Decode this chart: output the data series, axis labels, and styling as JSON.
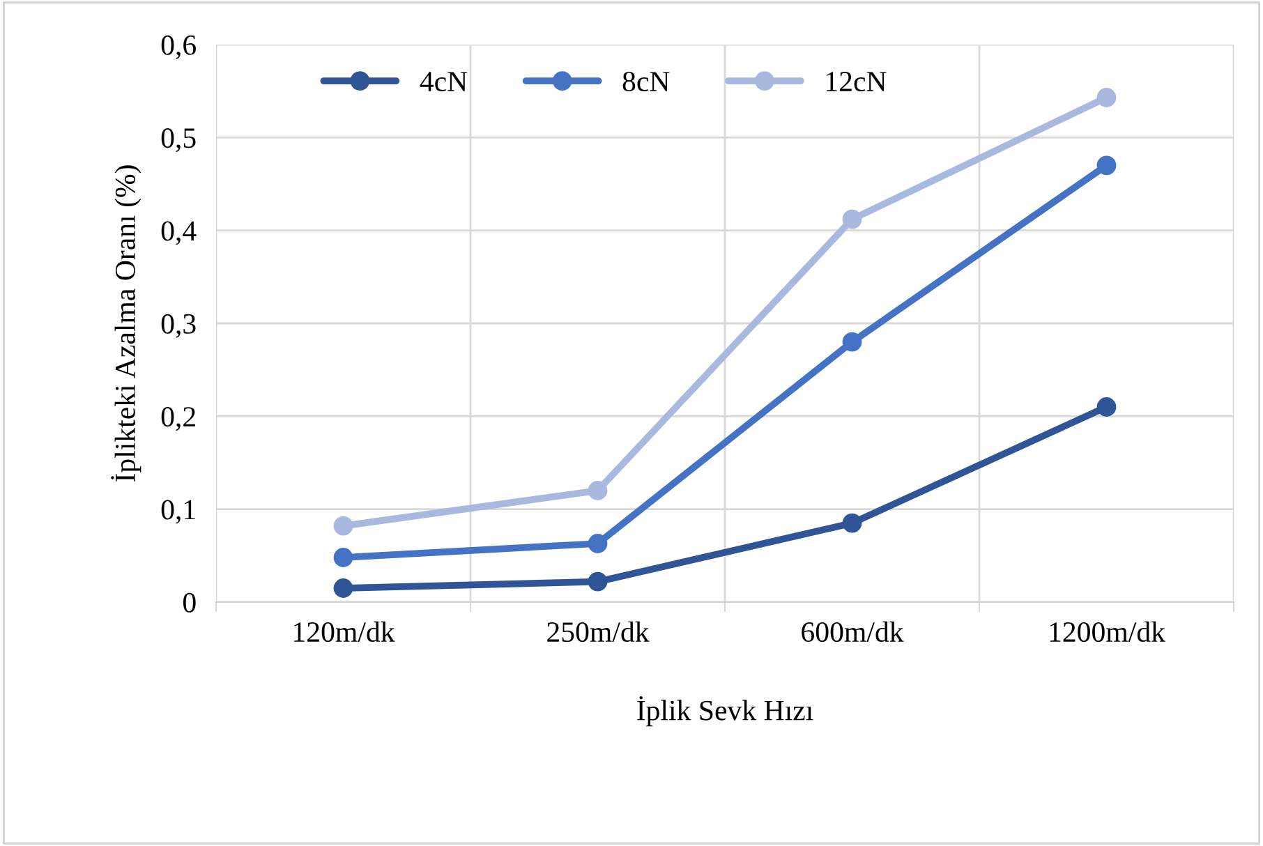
{
  "chart_data": {
    "type": "line",
    "xlabel": "İplik Sevk Hızı",
    "ylabel": "İplikteki Azalma Oranı (%)",
    "categories": [
      "120m/dk",
      "250m/dk",
      "600m/dk",
      "1200m/dk"
    ],
    "series": [
      {
        "name": "4cN",
        "color": "#2f5597",
        "values": [
          0.015,
          0.022,
          0.085,
          0.21
        ]
      },
      {
        "name": "8cN",
        "color": "#4472c4",
        "values": [
          0.048,
          0.063,
          0.28,
          0.47
        ]
      },
      {
        "name": "12cN",
        "color": "#a9b8de",
        "values": [
          0.082,
          0.12,
          0.412,
          0.543
        ]
      }
    ],
    "ylim": [
      0,
      0.6
    ],
    "yticks": [
      {
        "value": 0,
        "label": "0"
      },
      {
        "value": 0.1,
        "label": "0,1"
      },
      {
        "value": 0.2,
        "label": "0,2"
      },
      {
        "value": 0.3,
        "label": "0,3"
      },
      {
        "value": 0.4,
        "label": "0,4"
      },
      {
        "value": 0.5,
        "label": "0,5"
      },
      {
        "value": 0.6,
        "label": "0,6"
      }
    ],
    "grid": true,
    "legend": "top left",
    "marker": "circle",
    "line_style": "solid"
  }
}
